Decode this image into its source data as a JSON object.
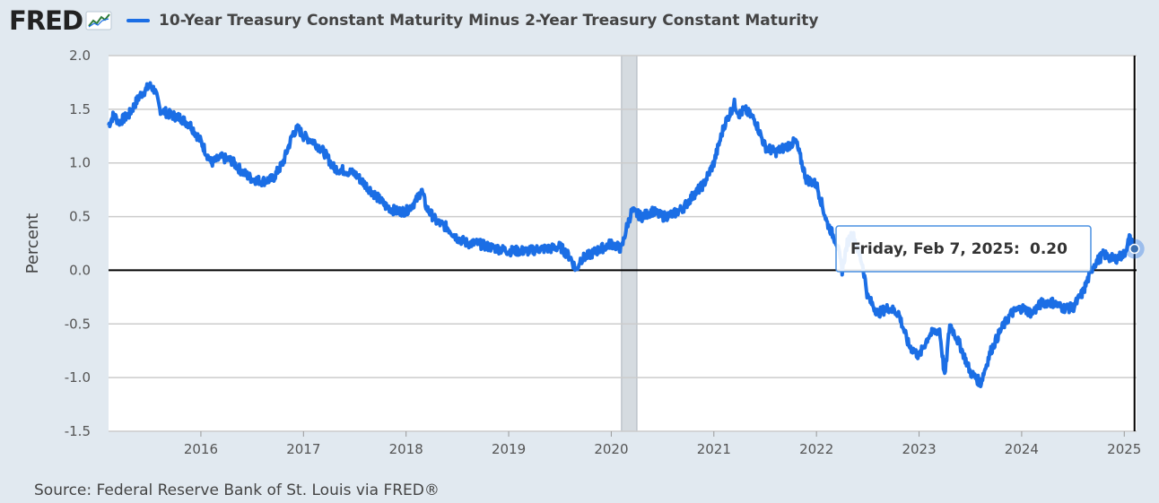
{
  "header": {
    "logo": "FRED",
    "logo_icon": "chart-line-icon",
    "title": "10-Year Treasury Constant Maturity Minus 2-Year Treasury Constant Maturity"
  },
  "source": "Source: Federal Reserve Bank of St. Louis via FRED®",
  "colors": {
    "series": "#1b6ee5",
    "recession": "#d5dbe0",
    "grid": "#cccccc",
    "background": "#e1e9f0",
    "plot": "#ffffff"
  },
  "tooltip": {
    "label": "Friday, Feb 7, 2025:",
    "value": "0.20"
  },
  "chart_data": {
    "type": "line",
    "ylabel": "Percent",
    "ylim": [
      -1.5,
      2.0
    ],
    "xlim": [
      2015.1,
      2025.12
    ],
    "yticks": [
      {
        "value": 2.0,
        "label": "2.0"
      },
      {
        "value": 1.5,
        "label": "1.5"
      },
      {
        "value": 1.0,
        "label": "1.0"
      },
      {
        "value": 0.5,
        "label": "0.5"
      },
      {
        "value": 0.0,
        "label": "0.0"
      },
      {
        "value": -0.5,
        "label": "-0.5"
      },
      {
        "value": -1.0,
        "label": "-1.0"
      },
      {
        "value": -1.5,
        "label": "-1.5"
      }
    ],
    "xticks": [
      {
        "value": 2016.0,
        "label": "2016"
      },
      {
        "value": 2017.0,
        "label": "2017"
      },
      {
        "value": 2018.0,
        "label": "2018"
      },
      {
        "value": 2019.0,
        "label": "2019"
      },
      {
        "value": 2020.0,
        "label": "2020"
      },
      {
        "value": 2021.0,
        "label": "2021"
      },
      {
        "value": 2022.0,
        "label": "2022"
      },
      {
        "value": 2023.0,
        "label": "2023"
      },
      {
        "value": 2024.0,
        "label": "2024"
      },
      {
        "value": 2025.0,
        "label": "2025"
      }
    ],
    "recession": [
      2020.1,
      2020.25
    ],
    "highlight_point": {
      "x": 2025.1,
      "y": 0.2
    },
    "series": [
      {
        "x": [
          2015.1,
          2015.15,
          2015.2,
          2015.3,
          2015.4,
          2015.5,
          2015.55,
          2015.6,
          2015.7,
          2015.8,
          2015.9,
          2016.0,
          2016.1,
          2016.2,
          2016.3,
          2016.4,
          2016.5,
          2016.6,
          2016.7,
          2016.8,
          2016.9,
          2016.95,
          2017.0,
          2017.1,
          2017.2,
          2017.3,
          2017.4,
          2017.5,
          2017.6,
          2017.7,
          2017.8,
          2017.9,
          2018.0,
          2018.1,
          2018.15,
          2018.2,
          2018.3,
          2018.4,
          2018.5,
          2018.6,
          2018.7,
          2018.8,
          2018.9,
          2019.0,
          2019.1,
          2019.2,
          2019.3,
          2019.4,
          2019.5,
          2019.6,
          2019.66,
          2019.7,
          2019.8,
          2019.9,
          2020.0,
          2020.1,
          2020.15,
          2020.2,
          2020.3,
          2020.4,
          2020.5,
          2020.6,
          2020.7,
          2020.8,
          2020.9,
          2021.0,
          2021.1,
          2021.2,
          2021.25,
          2021.3,
          2021.4,
          2021.5,
          2021.6,
          2021.7,
          2021.8,
          2021.9,
          2022.0,
          2022.1,
          2022.2,
          2022.25,
          2022.3,
          2022.35,
          2022.45,
          2022.5,
          2022.6,
          2022.7,
          2022.8,
          2022.9,
          2023.0,
          2023.1,
          2023.2,
          2023.25,
          2023.3,
          2023.4,
          2023.5,
          2023.6,
          2023.7,
          2023.8,
          2023.9,
          2024.0,
          2024.1,
          2024.2,
          2024.3,
          2024.4,
          2024.5,
          2024.6,
          2024.7,
          2024.8,
          2024.9,
          2025.0,
          2025.05,
          2025.1
        ],
        "y": [
          1.35,
          1.45,
          1.38,
          1.45,
          1.62,
          1.72,
          1.68,
          1.5,
          1.45,
          1.42,
          1.35,
          1.2,
          1.0,
          1.05,
          1.02,
          0.92,
          0.85,
          0.83,
          0.85,
          1.0,
          1.28,
          1.32,
          1.25,
          1.2,
          1.1,
          0.95,
          0.93,
          0.9,
          0.8,
          0.7,
          0.6,
          0.55,
          0.55,
          0.65,
          0.75,
          0.58,
          0.45,
          0.4,
          0.3,
          0.25,
          0.25,
          0.22,
          0.2,
          0.18,
          0.18,
          0.18,
          0.2,
          0.2,
          0.22,
          0.12,
          0.0,
          0.1,
          0.15,
          0.2,
          0.25,
          0.2,
          0.4,
          0.55,
          0.5,
          0.55,
          0.5,
          0.52,
          0.58,
          0.7,
          0.8,
          1.0,
          1.35,
          1.55,
          1.45,
          1.5,
          1.4,
          1.15,
          1.1,
          1.15,
          1.2,
          0.85,
          0.8,
          0.45,
          0.25,
          0.0,
          0.25,
          0.35,
          0.05,
          -0.25,
          -0.4,
          -0.35,
          -0.4,
          -0.7,
          -0.8,
          -0.6,
          -0.55,
          -1.0,
          -0.5,
          -0.7,
          -0.95,
          -1.05,
          -0.75,
          -0.55,
          -0.4,
          -0.35,
          -0.4,
          -0.3,
          -0.3,
          -0.35,
          -0.35,
          -0.2,
          0.05,
          0.15,
          0.1,
          0.15,
          0.3,
          0.2
        ]
      }
    ]
  }
}
